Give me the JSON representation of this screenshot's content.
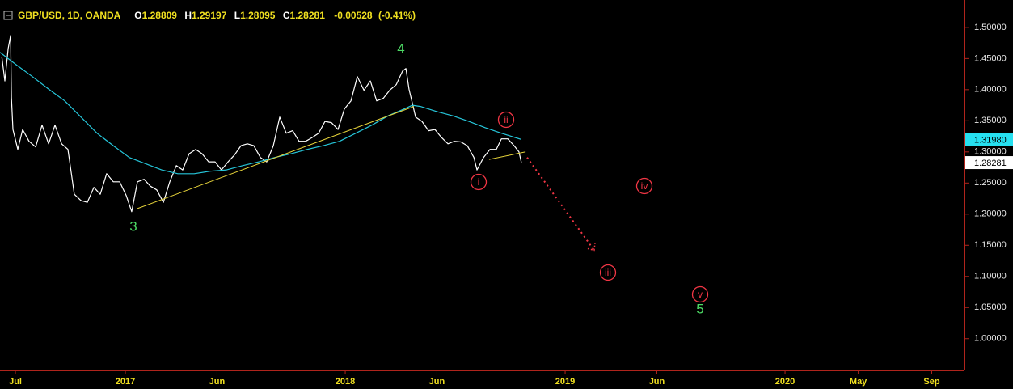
{
  "chart_data": {
    "type": "line",
    "title": "GBP/USD, 1D, OANDA",
    "ohlc": [
      {
        "label": "O",
        "value": 1.28809
      },
      {
        "label": "H",
        "value": 1.29197
      },
      {
        "label": "L",
        "value": 1.28095
      },
      {
        "label": "C",
        "value": 1.28281
      }
    ],
    "change": -0.00528,
    "change_pct": "(-0.41%)",
    "xlim": [
      2016.43,
      2020.816
    ],
    "ylim": [
      0.949,
      1.544
    ],
    "xticks": [
      {
        "value": 2016.5,
        "label": "Jul"
      },
      2017,
      {
        "value": 2017.417,
        "label": "Jun"
      },
      2018,
      {
        "value": 2018.417,
        "label": "Jun"
      },
      2019,
      {
        "value": 2019.417,
        "label": "Jun"
      },
      2020,
      {
        "value": 2020.333,
        "label": "May"
      },
      {
        "value": 2020.667,
        "label": "Sep"
      }
    ],
    "yticks": [
      {
        "value": 1.0,
        "label": "1.00000"
      },
      {
        "value": 1.05,
        "label": "1.05000"
      },
      {
        "value": 1.1,
        "label": "1.10000"
      },
      {
        "value": 1.15,
        "label": "1.15000"
      },
      {
        "value": 1.2,
        "label": "1.20000"
      },
      {
        "value": 1.25,
        "label": "1.25000"
      },
      {
        "value": 1.3,
        "label": "1.30000"
      },
      {
        "value": 1.35,
        "label": "1.35000"
      },
      {
        "value": 1.4,
        "label": "1.40000"
      },
      {
        "value": 1.45,
        "label": "1.45000"
      },
      {
        "value": 1.5,
        "label": "1.50000"
      }
    ],
    "grid": false,
    "series": [
      {
        "color": "#ffffff",
        "x": [
          2016.438,
          2016.452,
          2016.467,
          2016.478,
          2016.482,
          2016.489,
          2016.511,
          2016.533,
          2016.562,
          2016.592,
          2016.621,
          2016.651,
          2016.68,
          2016.71,
          2016.739,
          2016.768,
          2016.798,
          2016.827,
          2016.857,
          2016.886,
          2016.915,
          2016.945,
          2016.974,
          2017.004,
          2017.029,
          2017.055,
          2017.085,
          2017.114,
          2017.143,
          2017.173,
          2017.202,
          2017.232,
          2017.261,
          2017.29,
          2017.32,
          2017.349,
          2017.379,
          2017.408,
          2017.437,
          2017.467,
          2017.496,
          2017.526,
          2017.555,
          2017.584,
          2017.614,
          2017.643,
          2017.673,
          2017.702,
          2017.732,
          2017.761,
          2017.79,
          2017.82,
          2017.849,
          2017.879,
          2017.908,
          2017.937,
          2017.967,
          2017.996,
          2018.026,
          2018.055,
          2018.085,
          2018.114,
          2018.143,
          2018.173,
          2018.202,
          2018.232,
          2018.261,
          2018.276,
          2018.29,
          2018.32,
          2018.349,
          2018.379,
          2018.408,
          2018.438,
          2018.467,
          2018.496,
          2018.526,
          2018.555,
          2018.585,
          2018.599,
          2018.629,
          2018.658,
          2018.687,
          2018.71,
          2018.739,
          2018.768,
          2018.79,
          2018.801
        ],
        "values": [
          1.453,
          1.414,
          1.466,
          1.487,
          1.388,
          1.336,
          1.304,
          1.336,
          1.317,
          1.308,
          1.343,
          1.313,
          1.343,
          1.313,
          1.304,
          1.232,
          1.222,
          1.219,
          1.243,
          1.232,
          1.265,
          1.252,
          1.252,
          1.23,
          1.204,
          1.252,
          1.256,
          1.245,
          1.239,
          1.219,
          1.252,
          1.278,
          1.271,
          1.297,
          1.304,
          1.297,
          1.284,
          1.284,
          1.271,
          1.284,
          1.295,
          1.31,
          1.313,
          1.31,
          1.291,
          1.284,
          1.31,
          1.356,
          1.33,
          1.334,
          1.317,
          1.317,
          1.323,
          1.33,
          1.349,
          1.347,
          1.336,
          1.369,
          1.382,
          1.421,
          1.399,
          1.414,
          1.382,
          1.386,
          1.399,
          1.408,
          1.43,
          1.434,
          1.401,
          1.356,
          1.349,
          1.334,
          1.336,
          1.323,
          1.313,
          1.317,
          1.316,
          1.31,
          1.291,
          1.271,
          1.291,
          1.304,
          1.304,
          1.321,
          1.321,
          1.31,
          1.3,
          1.283
        ]
      },
      {
        "color": "#26c6da",
        "x": [
          2016.43,
          2016.504,
          2016.577,
          2016.651,
          2016.724,
          2016.798,
          2016.871,
          2016.945,
          2017.018,
          2017.092,
          2017.165,
          2017.239,
          2017.313,
          2017.386,
          2017.46,
          2017.533,
          2017.607,
          2017.68,
          2017.754,
          2017.827,
          2017.901,
          2017.974,
          2018.048,
          2018.121,
          2018.195,
          2018.268,
          2018.305,
          2018.342,
          2018.415,
          2018.489,
          2018.562,
          2018.636,
          2018.71,
          2018.801
        ],
        "values": [
          1.46,
          1.44,
          1.421,
          1.401,
          1.382,
          1.356,
          1.33,
          1.31,
          1.291,
          1.281,
          1.271,
          1.265,
          1.265,
          1.269,
          1.271,
          1.278,
          1.284,
          1.291,
          1.297,
          1.304,
          1.31,
          1.317,
          1.33,
          1.343,
          1.358,
          1.369,
          1.375,
          1.373,
          1.365,
          1.358,
          1.349,
          1.339,
          1.33,
          1.32
        ]
      }
    ],
    "drawings": [
      {
        "color": "#e6d33a",
        "x": [
          2017.055,
          2018.312
        ],
        "values": [
          1.209,
          1.373
        ]
      },
      {
        "color": "#e6d33a",
        "x": [
          2018.654,
          2018.82
        ],
        "values": [
          1.288,
          1.3
        ]
      },
      {
        "color": "#f23645",
        "dotted": true,
        "x": [
          2018.827,
          2019.132
        ],
        "values": [
          1.291,
          1.142
        ]
      }
    ],
    "price_tags": [
      {
        "value": 1.3198,
        "label": "1.31980",
        "color": "#26e0f0"
      },
      {
        "value": 1.28281,
        "label": "1.28281",
        "color": "#ffffff"
      }
    ],
    "wave_labels": [
      {
        "text": "3",
        "color": "#4cd964"
      },
      {
        "text": "4",
        "color": "#4cd964"
      },
      {
        "text": "5",
        "color": "#4cd964"
      },
      {
        "text": "i",
        "color": "#f23645",
        "circled": true
      },
      {
        "text": "ii",
        "color": "#f23645",
        "circled": true
      },
      {
        "text": "iii",
        "color": "#f23645",
        "circled": true
      },
      {
        "text": "iv",
        "color": "#f23645",
        "circled": true
      },
      {
        "text": "v",
        "color": "#f23645",
        "circled": true
      }
    ]
  }
}
